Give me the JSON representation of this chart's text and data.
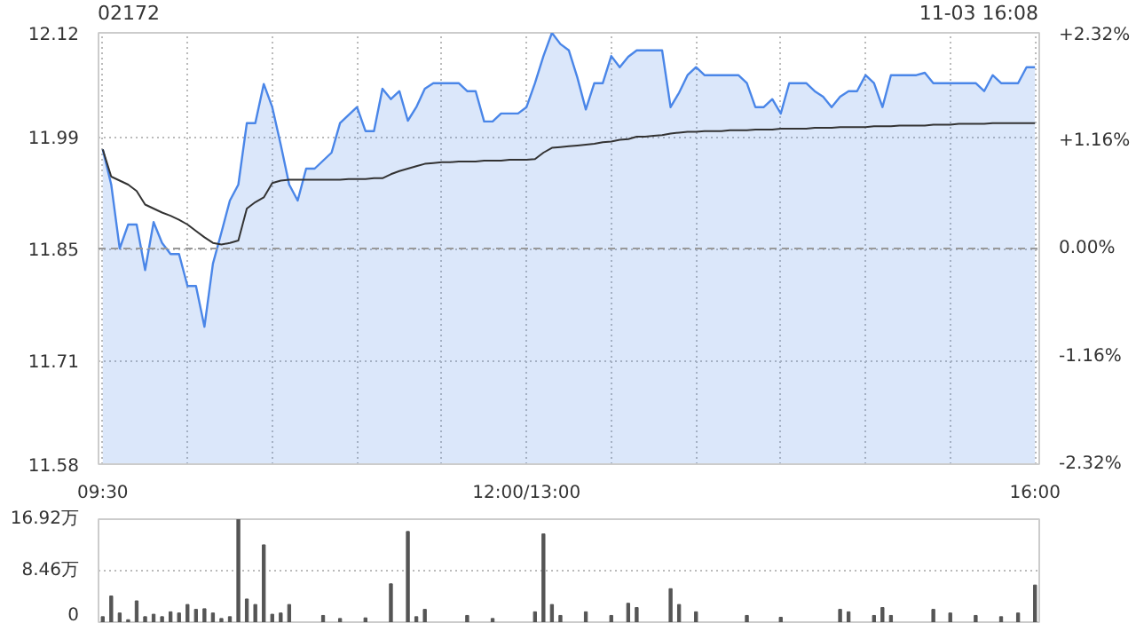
{
  "chart_data": [
    {
      "type": "area",
      "annotations": [
        "11-03 16:08"
      ],
      "title": "02172",
      "categories": [
        "09:30",
        null,
        null,
        null,
        null,
        null,
        null,
        null,
        null,
        null,
        null,
        null,
        null,
        null,
        null,
        null,
        null,
        null,
        null,
        null,
        null,
        null,
        null,
        null,
        null,
        null,
        null,
        null,
        null,
        null,
        null,
        null,
        null,
        null,
        null,
        null,
        null,
        null,
        null,
        null,
        null,
        null,
        null,
        null,
        null,
        null,
        null,
        null,
        null,
        null,
        "12:00/13:00",
        null,
        null,
        null,
        null,
        null,
        null,
        null,
        null,
        null,
        null,
        null,
        null,
        null,
        null,
        null,
        null,
        null,
        null,
        null,
        null,
        null,
        null,
        null,
        null,
        null,
        null,
        null,
        null,
        null,
        null,
        null,
        null,
        null,
        null,
        null,
        null,
        null,
        null,
        null,
        null,
        null,
        null,
        null,
        null,
        null,
        null,
        null,
        null,
        null,
        null,
        null,
        null,
        null,
        null,
        null,
        null,
        null,
        null,
        null,
        "16:00"
      ],
      "ylim": [
        11.58,
        12.12
      ],
      "yticks": [
        11.58,
        11.71,
        11.85,
        11.99,
        12.12
      ],
      "y2lim": [
        -2.32,
        2.32
      ],
      "y2ticks": [
        {
          "value": -2.32,
          "label": "-2.32%"
        },
        {
          "value": -1.16,
          "label": "-1.16%"
        },
        {
          "value": 0,
          "label": "0.00%"
        },
        {
          "value": 1.16,
          "label": "+1.16%"
        },
        {
          "value": 2.32,
          "label": "+2.32%"
        }
      ],
      "grid": true,
      "ref_lines": [
        {
          "axis": "y",
          "value": 11.85,
          "color": "#999999",
          "line_style": "dashed"
        }
      ],
      "series": [
        {
          "type": "area",
          "color": "#4a86e8",
          "values": [
            11.974,
            11.93,
            11.85,
            11.88,
            11.88,
            11.823,
            11.883,
            11.857,
            11.843,
            11.843,
            11.803,
            11.803,
            11.752,
            11.831,
            11.87,
            11.91,
            11.93,
            12.007,
            12.007,
            12.056,
            12.027,
            11.98,
            11.93,
            11.91,
            11.95,
            11.95,
            11.96,
            11.97,
            12.007,
            12.017,
            12.027,
            11.997,
            11.997,
            12.05,
            12.037,
            12.047,
            12.01,
            12.027,
            12.05,
            12.057,
            12.057,
            12.057,
            12.057,
            12.047,
            12.047,
            12.009,
            12.009,
            12.019,
            12.019,
            12.019,
            12.027,
            12.057,
            12.091,
            12.12,
            12.106,
            12.098,
            12.064,
            12.024,
            12.057,
            12.057,
            12.091,
            12.077,
            12.09,
            12.098,
            12.098,
            12.098,
            12.098,
            12.027,
            12.045,
            12.067,
            12.077,
            12.067,
            12.067,
            12.067,
            12.067,
            12.067,
            12.057,
            12.027,
            12.027,
            12.037,
            12.019,
            12.057,
            12.057,
            12.057,
            12.047,
            12.04,
            12.027,
            12.04,
            12.047,
            12.047,
            12.067,
            12.057,
            12.027,
            12.067,
            12.067,
            12.067,
            12.067,
            12.07,
            12.057,
            12.057,
            12.057,
            12.057,
            12.057,
            12.057,
            12.047,
            12.067,
            12.057,
            12.057,
            12.057,
            12.077,
            12.077
          ]
        },
        {
          "type": "line",
          "color": "#333333",
          "values": [
            11.974,
            11.94,
            11.935,
            11.93,
            11.922,
            11.905,
            11.9,
            11.895,
            11.891,
            11.886,
            11.88,
            11.872,
            11.864,
            11.857,
            11.855,
            11.857,
            11.86,
            11.9,
            11.908,
            11.914,
            11.932,
            11.935,
            11.936,
            11.936,
            11.936,
            11.936,
            11.936,
            11.936,
            11.936,
            11.937,
            11.937,
            11.937,
            11.938,
            11.938,
            11.943,
            11.947,
            11.95,
            11.953,
            11.956,
            11.957,
            11.958,
            11.958,
            11.959,
            11.959,
            11.959,
            11.96,
            11.96,
            11.96,
            11.961,
            11.961,
            11.961,
            11.962,
            11.97,
            11.976,
            11.977,
            11.978,
            11.979,
            11.98,
            11.981,
            11.983,
            11.984,
            11.986,
            11.987,
            11.99,
            11.99,
            11.991,
            11.992,
            11.994,
            11.995,
            11.996,
            11.996,
            11.997,
            11.997,
            11.997,
            11.998,
            11.998,
            11.998,
            11.999,
            11.999,
            11.999,
            12.0,
            12.0,
            12.0,
            12.0,
            12.001,
            12.001,
            12.001,
            12.002,
            12.002,
            12.002,
            12.002,
            12.003,
            12.003,
            12.003,
            12.004,
            12.004,
            12.004,
            12.004,
            12.005,
            12.005,
            12.005,
            12.006,
            12.006,
            12.006,
            12.006,
            12.007,
            12.007,
            12.007,
            12.007,
            12.007,
            12.007
          ]
        }
      ]
    },
    {
      "type": "bar",
      "color": "#555555",
      "tick_labels": "y",
      "grid": "y",
      "categories": [
        null,
        null,
        null,
        null,
        null,
        null,
        null,
        null,
        null,
        null,
        null,
        null,
        null,
        null,
        null,
        null,
        null,
        null,
        null,
        null,
        null,
        null,
        null,
        null,
        null,
        null,
        null,
        null,
        null,
        null,
        null,
        null,
        null,
        null,
        null,
        null,
        null,
        null,
        null,
        null,
        null,
        null,
        null,
        null,
        null,
        null,
        null,
        null,
        null,
        null,
        null,
        null,
        null,
        null,
        null,
        null,
        null,
        null,
        null,
        null,
        null,
        null,
        null,
        null,
        null,
        null,
        null,
        null,
        null,
        null,
        null,
        null,
        null,
        null,
        null,
        null,
        null,
        null,
        null,
        null,
        null,
        null,
        null,
        null,
        null,
        null,
        null,
        null,
        null,
        null,
        null,
        null,
        null,
        null,
        null,
        null,
        null,
        null,
        null,
        null,
        null,
        null,
        null,
        null,
        null,
        null,
        null,
        null,
        null,
        null,
        null
      ],
      "ylim": [
        0,
        16.92
      ],
      "yticks": [
        0,
        {
          "value": 8.46,
          "label": "8.46万"
        },
        {
          "value": 16.92,
          "label": "16.92万"
        }
      ],
      "values": [
        0.9,
        4.3,
        1.5,
        0.4,
        3.5,
        0.9,
        1.3,
        0.9,
        1.7,
        1.5,
        2.9,
        2.1,
        2.2,
        1.5,
        0.6,
        0.9,
        16.9,
        3.8,
        2.9,
        12.7,
        1.3,
        1.5,
        2.9,
        null,
        null,
        null,
        1.1,
        null,
        0.6,
        null,
        null,
        0.7,
        null,
        null,
        6.3,
        null,
        14.9,
        0.9,
        2.1,
        null,
        null,
        null,
        null,
        1.1,
        null,
        null,
        0.6,
        null,
        null,
        null,
        null,
        1.7,
        14.5,
        2.9,
        1.1,
        null,
        null,
        1.7,
        null,
        null,
        1.1,
        null,
        3.1,
        2.4,
        null,
        null,
        null,
        5.5,
        2.9,
        null,
        1.7,
        null,
        null,
        null,
        null,
        null,
        1.1,
        null,
        null,
        null,
        0.8,
        null,
        null,
        null,
        null,
        null,
        null,
        2.1,
        1.7,
        null,
        null,
        1.1,
        2.4,
        1.1,
        null,
        null,
        null,
        null,
        2.1,
        null,
        1.5,
        null,
        null,
        1.1,
        null,
        null,
        0.9,
        null,
        1.5,
        null,
        6.1
      ]
    }
  ]
}
